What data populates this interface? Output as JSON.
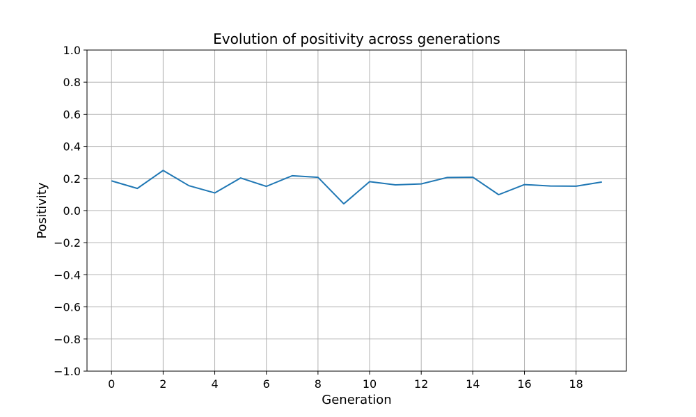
{
  "chart_data": {
    "type": "line",
    "title": "Evolution of positivity across generations",
    "xlabel": "Generation",
    "ylabel": "Positivity",
    "xlim": [
      -0.95,
      19.95
    ],
    "ylim": [
      -1.0,
      1.0
    ],
    "xticks": [
      0,
      2,
      4,
      6,
      8,
      10,
      12,
      14,
      16,
      18
    ],
    "xtick_labels": [
      "0",
      "2",
      "4",
      "6",
      "8",
      "10",
      "12",
      "14",
      "16",
      "18"
    ],
    "yticks": [
      -1.0,
      -0.8,
      -0.6,
      -0.4,
      -0.2,
      0.0,
      0.2,
      0.4,
      0.6,
      0.8,
      1.0
    ],
    "ytick_labels": [
      "−1.0",
      "−0.8",
      "−0.6",
      "−0.4",
      "−0.2",
      "0.0",
      "0.2",
      "0.4",
      "0.6",
      "0.8",
      "1.0"
    ],
    "grid": true,
    "line_color": "#1f77b4",
    "grid_color": "#b0b0b0",
    "x": [
      0,
      1,
      2,
      3,
      4,
      5,
      6,
      7,
      8,
      9,
      10,
      11,
      12,
      13,
      14,
      15,
      16,
      17,
      18,
      19
    ],
    "y": [
      0.185,
      0.138,
      0.25,
      0.155,
      0.11,
      0.203,
      0.151,
      0.217,
      0.207,
      0.042,
      0.18,
      0.16,
      0.166,
      0.206,
      0.208,
      0.099,
      0.162,
      0.153,
      0.152,
      0.178
    ]
  }
}
